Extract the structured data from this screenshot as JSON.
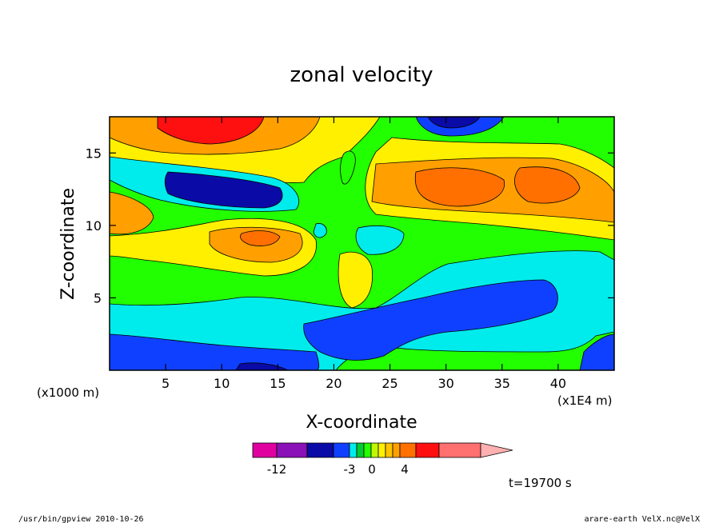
{
  "chart_data": {
    "type": "heatmap",
    "title": "zonal velocity",
    "xlabel": "X-coordinate",
    "ylabel": "Z-coordinate",
    "x_unit_label": "(x1E4 m)",
    "y_unit_label": "(x1000 m)",
    "xlim": [
      0,
      45
    ],
    "ylim": [
      0,
      17.5
    ],
    "x_ticks": [
      5,
      10,
      15,
      20,
      25,
      30,
      35,
      40
    ],
    "y_ticks": [
      5,
      10,
      15
    ],
    "colorbar": {
      "bands": [
        {
          "color": "#e000a0"
        },
        {
          "color": "#8a10b8"
        },
        {
          "color": "#0a0aa6"
        },
        {
          "color": "#1040ff"
        },
        {
          "color": "#00ecec"
        },
        {
          "color": "#00cc30"
        },
        {
          "color": "#22ff00"
        },
        {
          "color": "#bff800"
        },
        {
          "color": "#fff000"
        },
        {
          "color": "#ffc400"
        },
        {
          "color": "#ffa000"
        },
        {
          "color": "#ff7000"
        },
        {
          "color": "#ff1010"
        },
        {
          "color": "#ff7070"
        },
        {
          "color": "#ffb0b0"
        }
      ],
      "tick_labels": [
        "-12",
        "-3",
        "0",
        "4"
      ]
    },
    "time_label": "t=19700 s",
    "footer_left": "/usr/bin/gpview  2010-10-26",
    "footer_right": "arare-earth_VelX.nc@VelX"
  }
}
